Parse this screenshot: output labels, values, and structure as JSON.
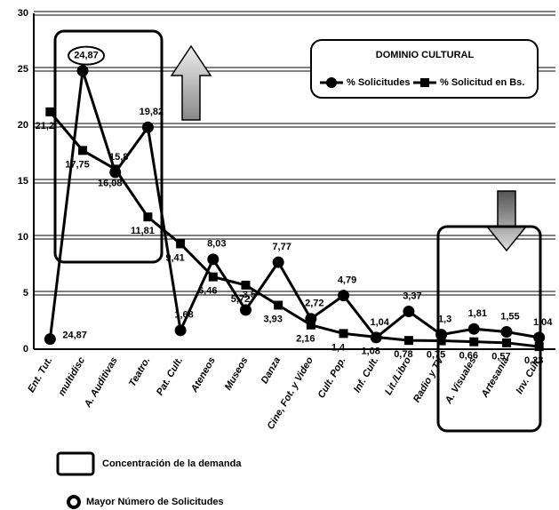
{
  "chart_data": {
    "type": "line",
    "legend_title": "DOMINIO CULTURAL",
    "categories": [
      "Ent. Tut.",
      "multidisc",
      "A. Auditivas",
      "Teatro.",
      "Pat. Cult.",
      "Ateneos",
      "Museos",
      "Danza",
      "Cine, Fot. y Video",
      "Cult. Pop.",
      "Inf. Cult.",
      "Lit./Libro",
      "Radio y TV",
      "A. Visuales",
      "Artesanía",
      "Inv. Cult."
    ],
    "series": [
      {
        "name": "% Solicitudes",
        "color": "#000000",
        "marker": "circle",
        "values": [
          0.9,
          24.87,
          15.8,
          19.82,
          1.68,
          8.03,
          3.5,
          7.77,
          2.72,
          4.79,
          1.04,
          3.37,
          1.3,
          1.81,
          1.55,
          1.04
        ],
        "value_labels": [
          null,
          "24,87",
          "15,8",
          "19,82",
          "1,68",
          "8,03",
          "3,5",
          "7,77",
          "2,72",
          "4,79",
          "1,04",
          "3,37",
          "1,3",
          "1,81",
          "1,55",
          "1,04"
        ]
      },
      {
        "name": "% Solicitud en Bs.",
        "color": "#000000",
        "marker": "square",
        "values": [
          21.2,
          17.75,
          16.08,
          11.81,
          9.41,
          6.46,
          5.72,
          3.93,
          2.16,
          1.4,
          1.08,
          0.78,
          0.75,
          0.66,
          0.57,
          0.23
        ],
        "value_labels": [
          "21,2",
          "17,75",
          "16,08",
          "11,81",
          "9,41",
          "6,46",
          "5,72",
          "3,93",
          "2,16",
          "1,4",
          "1,08",
          "0,78",
          "0,75",
          "0,66",
          "0,57",
          "0,23"
        ]
      }
    ],
    "annotations": [
      "24,87"
    ],
    "ylim": [
      0,
      30
    ],
    "yticks": [
      0,
      5,
      10,
      15,
      20,
      25,
      30
    ],
    "grid": true,
    "notes": [
      "Concentración de la demanda",
      "Mayor Número de Solicitudes"
    ]
  }
}
